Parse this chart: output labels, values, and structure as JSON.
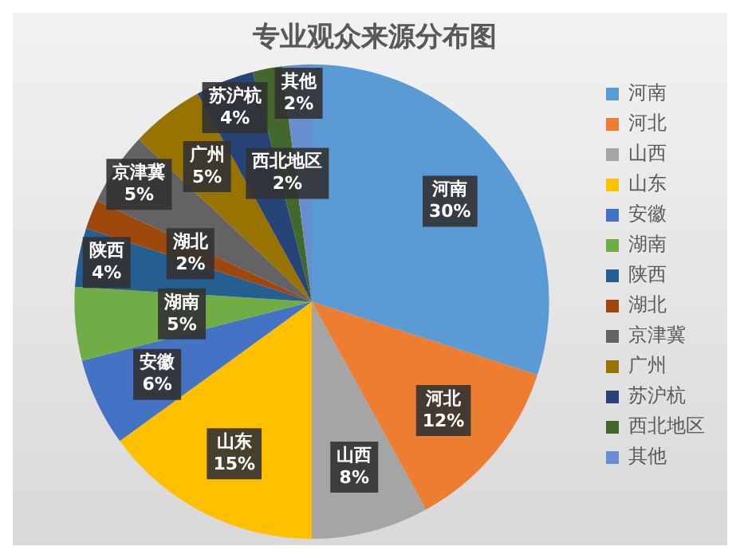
{
  "chart_data": {
    "type": "pie",
    "title": "专业观众来源分布图",
    "categories": [
      "河南",
      "河北",
      "山西",
      "山东",
      "安徽",
      "湖南",
      "陕西",
      "湖北",
      "京津冀",
      "广州",
      "苏沪杭",
      "西北地区",
      "其他"
    ],
    "values": [
      30,
      12,
      8,
      15,
      6,
      5,
      4,
      2,
      5,
      5,
      4,
      2,
      2
    ],
    "value_labels": [
      "30%",
      "12%",
      "8%",
      "15%",
      "6%",
      "5%",
      "4%",
      "2%",
      "5%",
      "5%",
      "4%",
      "2%",
      "2%"
    ],
    "colors": [
      "#5b9bd5",
      "#ed7d31",
      "#a5a5a5",
      "#ffc000",
      "#4472c4",
      "#70ad47",
      "#255e91",
      "#9e480e",
      "#636363",
      "#997300",
      "#264478",
      "#43682b",
      "#698ed0"
    ],
    "legend": "right"
  }
}
